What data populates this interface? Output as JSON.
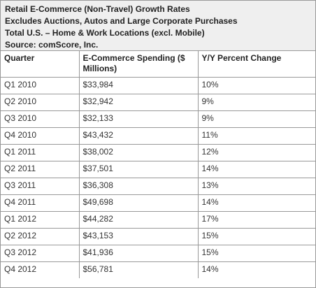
{
  "header": {
    "lines": [
      "Retail E-Commerce (Non-Travel) Growth Rates",
      "Excludes Auctions, Autos and Large Corporate Purchases",
      "Total U.S. – Home & Work Locations (excl. Mobile)",
      "Source: comScore, Inc."
    ]
  },
  "table": {
    "columns": [
      "Quarter",
      "E-Commerce Spending ($ Millions)",
      "Y/Y Percent Change"
    ],
    "rows": [
      [
        "Q1 2010",
        "$33,984",
        "10%"
      ],
      [
        "Q2 2010",
        "$32,942",
        "9%"
      ],
      [
        "Q3 2010",
        "$32,133",
        "9%"
      ],
      [
        "Q4 2010",
        "$43,432",
        "11%"
      ],
      [
        "Q1 2011",
        "$38,002",
        "12%"
      ],
      [
        "Q2 2011",
        "$37,501",
        "14%"
      ],
      [
        "Q3 2011",
        "$36,308",
        "13%"
      ],
      [
        "Q4 2011",
        "$49,698",
        "14%"
      ],
      [
        "Q1 2012",
        "$44,282",
        "17%"
      ],
      [
        "Q2 2012",
        "$43,153",
        "15%"
      ],
      [
        "Q3 2012",
        "$41,936",
        "15%"
      ],
      [
        "Q4 2012",
        "$56,781",
        "14%"
      ]
    ]
  }
}
